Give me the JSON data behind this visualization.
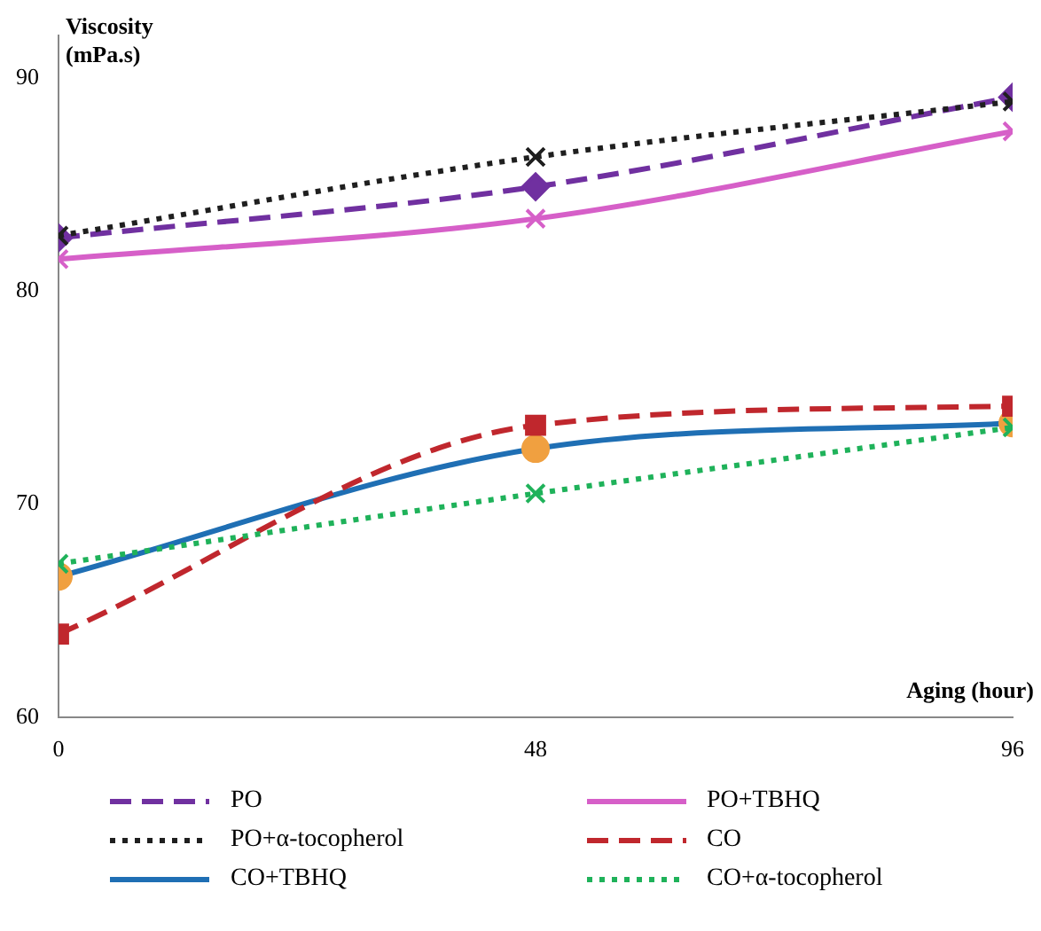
{
  "chart_data": {
    "type": "line",
    "xlabel": "Aging (hour)",
    "ylabel": "Viscosity (mPa.s)",
    "x": [
      0,
      48,
      96
    ],
    "xlim": [
      0,
      96
    ],
    "xticks": [
      0,
      48,
      96
    ],
    "ylim": [
      60,
      92
    ],
    "yticks": [
      60,
      70,
      80,
      90
    ],
    "grid": false,
    "legend": "bottom",
    "series": [
      {
        "name": "PO",
        "color": "#7030a0",
        "values": [
          82.5,
          84.9,
          89.1
        ],
        "marker": "diamond",
        "line_style": "dashed"
      },
      {
        "name": "PO+TBHQ",
        "color": "#d65fc8",
        "values": [
          81.5,
          83.4,
          87.5
        ],
        "marker": "cross",
        "line_style": "solid"
      },
      {
        "name": "PO+α-tocopherol",
        "color": "#1f1f1f",
        "values": [
          82.6,
          86.3,
          88.9
        ],
        "marker": "cross",
        "line_style": "dotted"
      },
      {
        "name": "CO",
        "color": "#c0272d",
        "values": [
          63.9,
          73.7,
          74.6
        ],
        "marker": "square",
        "line_style": "dashed"
      },
      {
        "name": "CO+TBHQ",
        "color": "#1f6fb4",
        "values": [
          66.6,
          72.6,
          73.8
        ],
        "marker": "circle",
        "line_style": "solid"
      },
      {
        "name": "CO+α-tocopherol",
        "color": "#1fb25a",
        "values": [
          67.2,
          70.5,
          73.6
        ],
        "marker": "cross",
        "line_style": "dotted"
      }
    ]
  }
}
